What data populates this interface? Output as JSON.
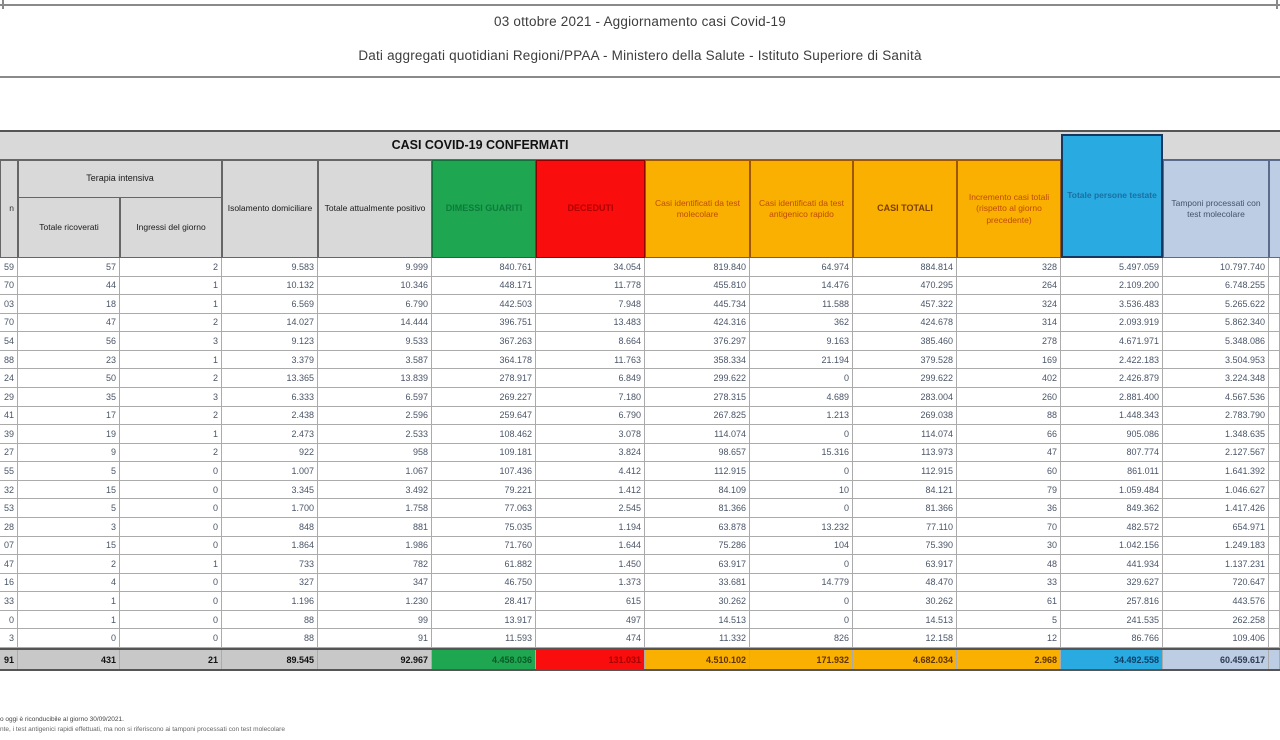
{
  "header": {
    "title_line1": "03 ottobre 2021 - Aggiornamento casi Covid-19",
    "title_line2": "Dati aggregati quotidiani Regioni/PPAA - Ministero della Salute - Istituto Superiore di Sanità"
  },
  "table": {
    "banner": "CASI COVID-19 CONFERMATI",
    "columns": {
      "ricoverati_fragment": "n",
      "terapia_intensiva": "Terapia intensiva",
      "totale_ricoverati": "Totale ricoverati",
      "ingressi_del_giorno": "Ingressi del giorno",
      "isolamento_domiciliare": "Isolamento domiciliare",
      "totale_attualmente_positivo": "Totale attualmente positivo",
      "dimessi_guariti": "DIMESSI GUARITI",
      "deceduti": "DECEDUTI",
      "casi_test_molecolare": "Casi identificati da test molecolare",
      "casi_test_antigenico": "Casi identificati da test antigenico rapido",
      "casi_totali": "CASI TOTALI",
      "incremento_casi": "Incremento casi totali (rispetto al giorno precedente)",
      "totale_persone_testate": "Totale persone testate",
      "tamponi_molecolare": "Tamponi processati con test molecolare"
    },
    "rows": [
      [
        "59",
        "57",
        "2",
        "9.583",
        "9.999",
        "840.761",
        "34.054",
        "819.840",
        "64.974",
        "884.814",
        "328",
        "5.497.059",
        "10.797.740"
      ],
      [
        "70",
        "44",
        "1",
        "10.132",
        "10.346",
        "448.171",
        "11.778",
        "455.810",
        "14.476",
        "470.295",
        "264",
        "2.109.200",
        "6.748.255"
      ],
      [
        "03",
        "18",
        "1",
        "6.569",
        "6.790",
        "442.503",
        "7.948",
        "445.734",
        "11.588",
        "457.322",
        "324",
        "3.536.483",
        "5.265.622"
      ],
      [
        "70",
        "47",
        "2",
        "14.027",
        "14.444",
        "396.751",
        "13.483",
        "424.316",
        "362",
        "424.678",
        "314",
        "2.093.919",
        "5.862.340"
      ],
      [
        "54",
        "56",
        "3",
        "9.123",
        "9.533",
        "367.263",
        "8.664",
        "376.297",
        "9.163",
        "385.460",
        "278",
        "4.671.971",
        "5.348.086"
      ],
      [
        "88",
        "23",
        "1",
        "3.379",
        "3.587",
        "364.178",
        "11.763",
        "358.334",
        "21.194",
        "379.528",
        "169",
        "2.422.183",
        "3.504.953"
      ],
      [
        "24",
        "50",
        "2",
        "13.365",
        "13.839",
        "278.917",
        "6.849",
        "299.622",
        "0",
        "299.622",
        "402",
        "2.426.879",
        "3.224.348"
      ],
      [
        "29",
        "35",
        "3",
        "6.333",
        "6.597",
        "269.227",
        "7.180",
        "278.315",
        "4.689",
        "283.004",
        "260",
        "2.881.400",
        "4.567.536"
      ],
      [
        "41",
        "17",
        "2",
        "2.438",
        "2.596",
        "259.647",
        "6.790",
        "267.825",
        "1.213",
        "269.038",
        "88",
        "1.448.343",
        "2.783.790"
      ],
      [
        "39",
        "19",
        "1",
        "2.473",
        "2.533",
        "108.462",
        "3.078",
        "114.074",
        "0",
        "114.074",
        "66",
        "905.086",
        "1.348.635"
      ],
      [
        "27",
        "9",
        "2",
        "922",
        "958",
        "109.181",
        "3.824",
        "98.657",
        "15.316",
        "113.973",
        "47",
        "807.774",
        "2.127.567"
      ],
      [
        "55",
        "5",
        "0",
        "1.007",
        "1.067",
        "107.436",
        "4.412",
        "112.915",
        "0",
        "112.915",
        "60",
        "861.011",
        "1.641.392"
      ],
      [
        "32",
        "15",
        "0",
        "3.345",
        "3.492",
        "79.221",
        "1.412",
        "84.109",
        "10",
        "84.121",
        "79",
        "1.059.484",
        "1.046.627"
      ],
      [
        "53",
        "5",
        "0",
        "1.700",
        "1.758",
        "77.063",
        "2.545",
        "81.366",
        "0",
        "81.366",
        "36",
        "849.362",
        "1.417.426"
      ],
      [
        "28",
        "3",
        "0",
        "848",
        "881",
        "75.035",
        "1.194",
        "63.878",
        "13.232",
        "77.110",
        "70",
        "482.572",
        "654.971"
      ],
      [
        "07",
        "15",
        "0",
        "1.864",
        "1.986",
        "71.760",
        "1.644",
        "75.286",
        "104",
        "75.390",
        "30",
        "1.042.156",
        "1.249.183"
      ],
      [
        "47",
        "2",
        "1",
        "733",
        "782",
        "61.882",
        "1.450",
        "63.917",
        "0",
        "63.917",
        "48",
        "441.934",
        "1.137.231"
      ],
      [
        "16",
        "4",
        "0",
        "327",
        "347",
        "46.750",
        "1.373",
        "33.681",
        "14.779",
        "48.470",
        "33",
        "329.627",
        "720.647"
      ],
      [
        "33",
        "1",
        "0",
        "1.196",
        "1.230",
        "28.417",
        "615",
        "30.262",
        "0",
        "30.262",
        "61",
        "257.816",
        "443.576"
      ],
      [
        "0",
        "1",
        "0",
        "88",
        "99",
        "13.917",
        "497",
        "14.513",
        "0",
        "14.513",
        "5",
        "241.535",
        "262.258"
      ],
      [
        "3",
        "0",
        "0",
        "88",
        "91",
        "11.593",
        "474",
        "11.332",
        "826",
        "12.158",
        "12",
        "86.766",
        "109.406"
      ]
    ],
    "totals": [
      "91",
      "431",
      "21",
      "89.545",
      "92.967",
      "4.458.036",
      "131.031",
      "4.510.102",
      "171.932",
      "4.682.034",
      "2.968",
      "34.492.558",
      "60.459.617"
    ]
  },
  "footnotes": {
    "line1": "o oggi è riconducibile al giorno 30/09/2021.",
    "line2": "nte, i test antigenici rapidi effettuati, ma non si riferiscono ai tamponi processati con test molecolare"
  },
  "colors": {
    "green": "#1ea750",
    "red": "#f90d0d",
    "yellow": "#f9b001",
    "cyan": "#29abe2",
    "periwinkle": "#bccde4",
    "header_gray": "#d9d9d9"
  }
}
